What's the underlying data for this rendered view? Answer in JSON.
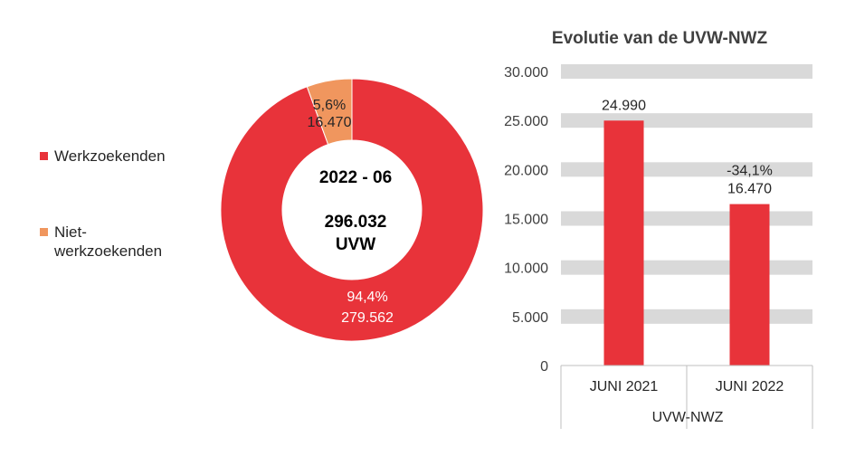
{
  "chart_data": [
    {
      "type": "pie",
      "variant": "donut",
      "center_label_period": "2022 - 06",
      "center_label_total": "296.032",
      "center_label_unit": "UVW",
      "slices": [
        {
          "name": "Werkzoekenden",
          "percent_label": "94,4%",
          "value": 279562,
          "value_label": "279.562",
          "color": "#e8333a"
        },
        {
          "name": "Niet-werkzoekenden",
          "name_lines": [
            "Niet-",
            "werkzoekenden"
          ],
          "percent_label": "5,6%",
          "value": 16470,
          "value_label": "16.470",
          "color": "#f0965e"
        }
      ],
      "legend_position": "left"
    },
    {
      "type": "bar",
      "title": "Evolutie van de UVW-NWZ",
      "categories": [
        "JUNI 2021",
        "JUNI 2022"
      ],
      "group_label": "UVW-NWZ",
      "values": [
        24990,
        16470
      ],
      "data_labels": [
        [
          "24.990"
        ],
        [
          "-34,1%",
          "16.470"
        ]
      ],
      "ylim": [
        0,
        30000
      ],
      "yticks": [
        0,
        5000,
        10000,
        15000,
        20000,
        25000,
        30000
      ],
      "ytick_labels": [
        "0",
        "5.000",
        "10.000",
        "15.000",
        "20.000",
        "25.000",
        "30.000"
      ],
      "grid": "banded",
      "bar_color": "#e8333a",
      "band_color": "#d9d9d9"
    }
  ]
}
